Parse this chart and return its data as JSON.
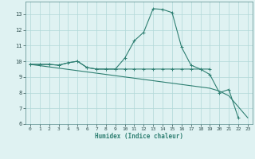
{
  "xlabel": "Humidex (Indice chaleur)",
  "x_values": [
    0,
    1,
    2,
    3,
    4,
    5,
    6,
    7,
    8,
    9,
    10,
    11,
    12,
    13,
    14,
    15,
    16,
    17,
    18,
    19,
    20,
    21,
    22,
    23
  ],
  "line1_y": [
    9.8,
    9.8,
    9.8,
    9.75,
    9.9,
    10.0,
    9.6,
    9.5,
    9.5,
    9.5,
    10.2,
    11.3,
    11.85,
    13.35,
    13.3,
    13.1,
    10.9,
    9.75,
    9.5,
    9.15,
    8.0,
    8.2,
    6.4,
    null
  ],
  "line2_y": [
    9.8,
    9.8,
    9.8,
    9.75,
    9.9,
    10.0,
    9.6,
    9.5,
    9.5,
    9.5,
    9.5,
    9.5,
    9.5,
    9.5,
    9.5,
    9.5,
    9.5,
    9.5,
    9.5,
    9.5,
    null,
    null,
    null,
    null
  ],
  "line3_y": [
    9.8,
    9.72,
    9.64,
    9.56,
    9.48,
    9.4,
    9.32,
    9.24,
    9.16,
    9.08,
    9.0,
    8.92,
    8.84,
    8.76,
    8.68,
    8.6,
    8.52,
    8.44,
    8.36,
    8.28,
    8.1,
    7.8,
    7.1,
    6.4
  ],
  "line_color": "#2e7f72",
  "bg_color": "#dff2f2",
  "grid_color": "#b0d8d8",
  "ylim": [
    6,
    13.8
  ],
  "xlim": [
    -0.5,
    23.5
  ],
  "yticks": [
    6,
    7,
    8,
    9,
    10,
    11,
    12,
    13
  ],
  "xticks": [
    0,
    1,
    2,
    3,
    4,
    5,
    6,
    7,
    8,
    9,
    10,
    11,
    12,
    13,
    14,
    15,
    16,
    17,
    18,
    19,
    20,
    21,
    22,
    23
  ]
}
